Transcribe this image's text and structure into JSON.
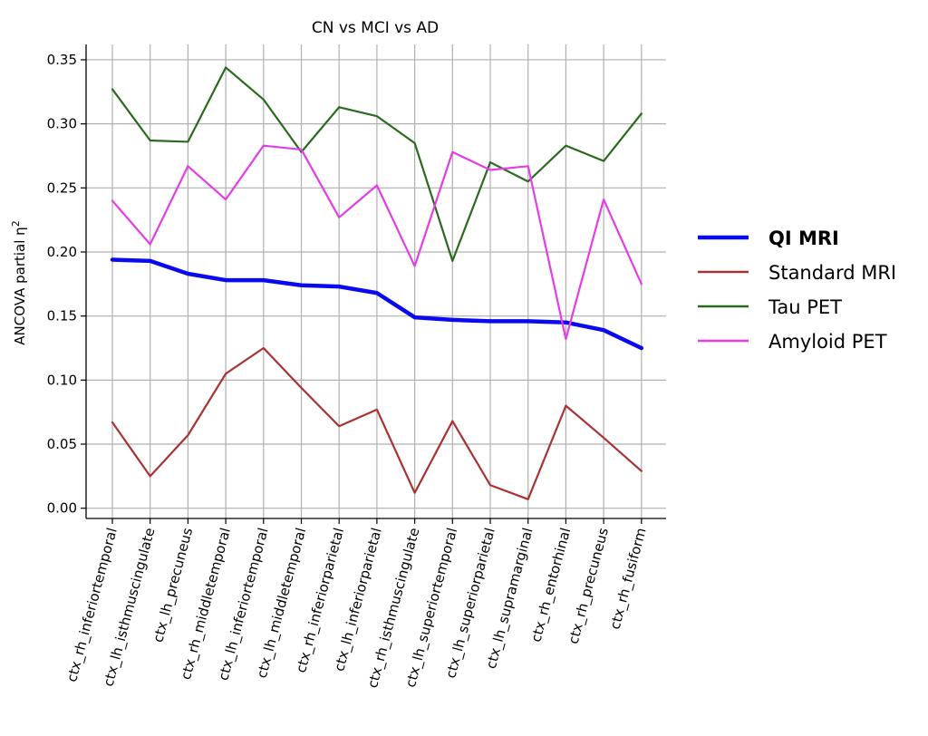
{
  "chart_data": {
    "type": "line",
    "title": "CN vs MCI vs AD",
    "xlabel": "",
    "ylabel": "ANCOVA partial η",
    "ylabel_superscript": "2",
    "ylim": [
      -0.008,
      0.362
    ],
    "yticks": [
      0.0,
      0.05,
      0.1,
      0.15,
      0.2,
      0.25,
      0.3,
      0.35
    ],
    "ytick_labels": [
      "0.00",
      "0.05",
      "0.10",
      "0.15",
      "0.20",
      "0.25",
      "0.30",
      "0.35"
    ],
    "grid": true,
    "legend_position": "right",
    "categories": [
      "ctx_rh_inferiortemporal",
      "ctx_lh_isthmuscingulate",
      "ctx_lh_precuneus",
      "ctx_rh_middletemporal",
      "ctx_lh_inferiortemporal",
      "ctx_lh_middletemporal",
      "ctx_rh_inferiorparietal",
      "ctx_lh_inferiorparietal",
      "ctx_rh_isthmuscingulate",
      "ctx_lh_superiortemporal",
      "ctx_lh_superiorparietal",
      "ctx_lh_supramarginal",
      "ctx_rh_entorhinal",
      "ctx_rh_precuneus",
      "ctx_rh_fusiform"
    ],
    "series": [
      {
        "name": "QI MRI",
        "color": "#0a0af0",
        "bold": true,
        "values": [
          0.194,
          0.193,
          0.183,
          0.178,
          0.178,
          0.174,
          0.173,
          0.168,
          0.149,
          0.147,
          0.146,
          0.146,
          0.145,
          0.139,
          0.125
        ]
      },
      {
        "name": "Standard MRI",
        "color": "#a83232",
        "bold": false,
        "values": [
          0.067,
          0.025,
          0.057,
          0.105,
          0.125,
          0.094,
          0.064,
          0.077,
          0.012,
          0.068,
          0.018,
          0.007,
          0.08,
          0.055,
          0.029
        ]
      },
      {
        "name": "Tau PET",
        "color": "#2a6a1e",
        "bold": false,
        "values": [
          0.327,
          0.287,
          0.286,
          0.344,
          0.319,
          0.278,
          0.313,
          0.306,
          0.285,
          0.193,
          0.27,
          0.255,
          0.283,
          0.271,
          0.308
        ]
      },
      {
        "name": "Amyloid PET",
        "color": "#e43de8",
        "bold": false,
        "values": [
          0.24,
          0.206,
          0.267,
          0.241,
          0.283,
          0.28,
          0.227,
          0.252,
          0.189,
          0.278,
          0.264,
          0.267,
          0.132,
          0.241,
          0.175
        ]
      }
    ]
  }
}
